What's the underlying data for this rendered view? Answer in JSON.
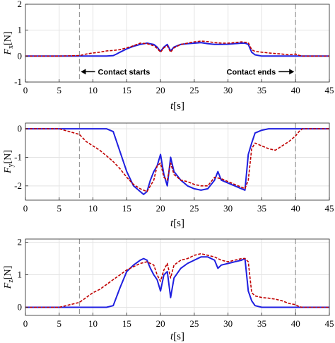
{
  "chart_data": [
    {
      "type": "line",
      "ylabel": "F_x [N]",
      "xlabel": "t [s]",
      "xlim": [
        0,
        45
      ],
      "ylim": [
        -1,
        2
      ],
      "xticks": [
        "0",
        "5",
        "10",
        "15",
        "20",
        "25",
        "30",
        "35",
        "40",
        "45"
      ],
      "yticks": [
        "-1",
        "0",
        "1",
        "2"
      ],
      "grid": true,
      "annotations": [
        "Contact starts",
        "Contact ends"
      ],
      "vlines": [
        8,
        40
      ],
      "series": [
        {
          "color": "#1f1fe0",
          "style": "solid",
          "x": [
            0,
            5,
            8,
            10,
            12,
            13,
            13.5,
            14,
            15,
            16,
            17,
            18,
            19,
            19.5,
            20,
            20.5,
            21,
            21.5,
            22,
            23,
            24,
            25,
            26,
            27,
            28,
            29,
            30,
            31,
            32,
            32.5,
            33,
            33.5,
            34,
            35,
            36,
            38,
            40,
            42,
            45
          ],
          "y": [
            0,
            0,
            0,
            0,
            0,
            0.02,
            0.08,
            0.15,
            0.28,
            0.38,
            0.45,
            0.5,
            0.45,
            0.35,
            0.18,
            0.35,
            0.45,
            0.2,
            0.35,
            0.45,
            0.48,
            0.5,
            0.52,
            0.48,
            0.45,
            0.45,
            0.46,
            0.48,
            0.5,
            0.5,
            0.45,
            0.15,
            0.05,
            0,
            0,
            0,
            0,
            0,
            0
          ]
        },
        {
          "color": "#c00000",
          "style": "dashed",
          "x": [
            0,
            5,
            8,
            9,
            10,
            11,
            12,
            13,
            14,
            15,
            16,
            17,
            18,
            19,
            19.5,
            20,
            20.5,
            21,
            21.5,
            22,
            23,
            24,
            25,
            26,
            27,
            28,
            29,
            30,
            31,
            32,
            33,
            33.5,
            34,
            35,
            36,
            37,
            38,
            39,
            40,
            40.5,
            41,
            42,
            45
          ],
          "y": [
            0,
            0,
            0.02,
            0.08,
            0.12,
            0.15,
            0.2,
            0.22,
            0.25,
            0.32,
            0.4,
            0.5,
            0.48,
            0.4,
            0.3,
            0.15,
            0.32,
            0.4,
            0.15,
            0.32,
            0.45,
            0.5,
            0.55,
            0.58,
            0.56,
            0.52,
            0.5,
            0.5,
            0.52,
            0.55,
            0.52,
            0.25,
            0.18,
            0.15,
            0.12,
            0.1,
            0.08,
            0.05,
            0.08,
            0.03,
            0.0,
            0,
            0
          ]
        }
      ]
    },
    {
      "type": "line",
      "ylabel": "F_y [N]",
      "xlabel": "t [s]",
      "xlim": [
        0,
        45
      ],
      "ylim": [
        -2.5,
        0.2
      ],
      "xticks": [
        "0",
        "5",
        "10",
        "15",
        "20",
        "25",
        "30",
        "35",
        "40",
        "45"
      ],
      "yticks": [
        "-2",
        "-1",
        "0"
      ],
      "grid": true,
      "vlines": [
        8,
        40
      ],
      "series": [
        {
          "color": "#1f1fe0",
          "style": "solid",
          "x": [
            0,
            5,
            8,
            10,
            12,
            13,
            14,
            15,
            16,
            17,
            17.5,
            18,
            18.5,
            19,
            19.5,
            20,
            20.5,
            21,
            21.5,
            22,
            23,
            24,
            25,
            26,
            27,
            28,
            28.5,
            29,
            30,
            31,
            32,
            32.5,
            33,
            33.5,
            34,
            35,
            36,
            38,
            40,
            42,
            45
          ],
          "y": [
            0,
            0,
            0,
            0,
            0,
            -0.1,
            -0.8,
            -1.5,
            -2.0,
            -2.2,
            -2.3,
            -2.2,
            -1.8,
            -1.5,
            -1.3,
            -0.9,
            -1.6,
            -2.0,
            -1.0,
            -1.5,
            -1.8,
            -2.0,
            -2.1,
            -2.15,
            -2.1,
            -1.8,
            -1.5,
            -1.8,
            -1.9,
            -2.0,
            -2.1,
            -2.15,
            -0.9,
            -0.5,
            -0.15,
            -0.05,
            0,
            0,
            0,
            0,
            0
          ]
        },
        {
          "color": "#c00000",
          "style": "dashed",
          "x": [
            0,
            5,
            8,
            9,
            10,
            11,
            12,
            13,
            14,
            15,
            16,
            17,
            18,
            19,
            19.5,
            20,
            20.5,
            21,
            21.5,
            22,
            23,
            24,
            25,
            26,
            27,
            28,
            29,
            30,
            31,
            32,
            32.5,
            33,
            33.5,
            34,
            35,
            36,
            37,
            38,
            39,
            40,
            40.5,
            41,
            42,
            45
          ],
          "y": [
            0,
            0,
            -0.2,
            -0.45,
            -0.6,
            -0.75,
            -0.95,
            -1.15,
            -1.4,
            -1.7,
            -1.95,
            -2.1,
            -2.2,
            -1.8,
            -1.3,
            -1.2,
            -1.7,
            -1.8,
            -1.2,
            -1.6,
            -1.8,
            -1.85,
            -1.95,
            -2.0,
            -2.0,
            -1.7,
            -1.75,
            -1.85,
            -1.95,
            -2.05,
            -2.1,
            -1.8,
            -0.7,
            -0.5,
            -0.6,
            -0.7,
            -0.75,
            -0.6,
            -0.45,
            -0.25,
            -0.1,
            0,
            0,
            0
          ]
        }
      ]
    },
    {
      "type": "line",
      "ylabel": "F_z [N]",
      "xlabel": "t [s]",
      "xlim": [
        0,
        45
      ],
      "ylim": [
        -0.25,
        2.1
      ],
      "xticks": [
        "0",
        "5",
        "10",
        "15",
        "20",
        "25",
        "30",
        "35",
        "40",
        "45"
      ],
      "yticks": [
        "0",
        "1",
        "2"
      ],
      "grid": true,
      "vlines": [
        8,
        40
      ],
      "series": [
        {
          "color": "#1f1fe0",
          "style": "solid",
          "x": [
            0,
            5,
            8,
            10,
            12,
            13,
            14,
            15,
            16,
            17,
            17.5,
            18,
            18.5,
            19,
            19.5,
            20,
            20.5,
            21,
            21.5,
            22,
            23,
            24,
            25,
            26,
            27,
            28,
            28.5,
            29,
            30,
            31,
            32,
            32.5,
            33,
            33.5,
            34,
            35,
            36,
            38,
            40,
            42,
            45
          ],
          "y": [
            0,
            0,
            0,
            0,
            0,
            0.05,
            0.6,
            1.1,
            1.3,
            1.45,
            1.5,
            1.45,
            1.2,
            1.0,
            0.85,
            0.5,
            1.0,
            1.1,
            0.3,
            0.9,
            1.2,
            1.35,
            1.45,
            1.55,
            1.55,
            1.45,
            1.2,
            1.3,
            1.35,
            1.4,
            1.45,
            1.5,
            0.5,
            0.2,
            0.05,
            0,
            0,
            0,
            0,
            0,
            0
          ]
        },
        {
          "color": "#c00000",
          "style": "dashed",
          "x": [
            0,
            5,
            8,
            9,
            10,
            11,
            12,
            13,
            14,
            15,
            16,
            17,
            18,
            19,
            19.5,
            20,
            20.5,
            21,
            21.5,
            22,
            23,
            24,
            25,
            26,
            27,
            28,
            29,
            30,
            31,
            32,
            32.5,
            33,
            33.5,
            34,
            35,
            36,
            37,
            38,
            39,
            40,
            40.5,
            41,
            42,
            45
          ],
          "y": [
            0,
            0,
            0.15,
            0.3,
            0.45,
            0.55,
            0.7,
            0.85,
            1.0,
            1.15,
            1.25,
            1.35,
            1.4,
            1.3,
            1.0,
            0.8,
            1.15,
            1.35,
            0.9,
            1.3,
            1.45,
            1.5,
            1.6,
            1.65,
            1.6,
            1.55,
            1.45,
            1.4,
            1.45,
            1.5,
            1.5,
            1.4,
            0.45,
            0.35,
            0.3,
            0.28,
            0.25,
            0.2,
            0.12,
            0.08,
            0.02,
            0,
            0,
            0
          ]
        }
      ]
    }
  ]
}
